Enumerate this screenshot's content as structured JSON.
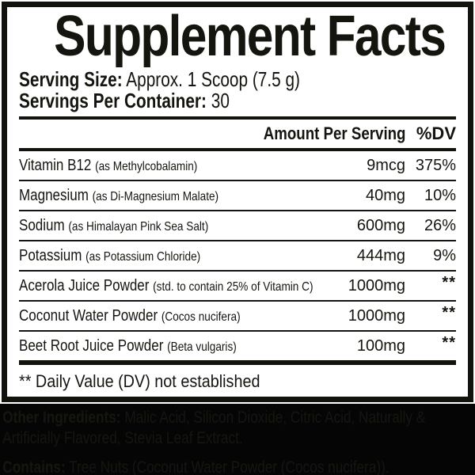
{
  "panel": {
    "title": "Supplement Facts",
    "serving_size_label": "Serving Size:",
    "serving_size_value": "Approx. 1 Scoop (7.5 g)",
    "servings_per_container_label": "Servings Per Container:",
    "servings_per_container_value": "30",
    "footnote": "** Daily Value (DV) not established"
  },
  "table": {
    "amount_header": "Amount Per Serving",
    "dv_header": "%DV",
    "rows": [
      {
        "name": "Vitamin B12",
        "detail": "(as Methylcobalamin)",
        "amount": "9mcg",
        "dv": "375%"
      },
      {
        "name": "Magnesium",
        "detail": "(as Di-Magnesium Malate)",
        "amount": "40mg",
        "dv": "10%"
      },
      {
        "name": "Sodium",
        "detail": "(as Himalayan Pink Sea Salt)",
        "amount": "600mg",
        "dv": "26%"
      },
      {
        "name": "Potassium",
        "detail": "(as Potassium Chloride)",
        "amount": "444mg",
        "dv": "9%"
      },
      {
        "name": "Acerola Juice Powder",
        "detail": "(std. to contain 25% of Vitamin C)",
        "amount": "1000mg",
        "dv": "**"
      },
      {
        "name": "Coconut Water Powder",
        "detail": "(Cocos nucifera)",
        "amount": "1000mg",
        "dv": "**"
      },
      {
        "name": "Beet Root Juice Powder",
        "detail": "(Beta vulgaris)",
        "amount": "100mg",
        "dv": "**"
      }
    ]
  },
  "bottom": {
    "other_ingredients_label": "Other Ingredients:",
    "other_ingredients_text": "Malic Acid, Silicon Dioxide, Citric Acid, Naturally & Artificially Flavored, Stevia Leaf Extract.",
    "contains_label": "Contains:",
    "contains_text": "Tree Nuts (Coconut Water Powder (Cocos nucifera))."
  },
  "colors": {
    "ink": "#15150f",
    "panel_border": "#13130d",
    "band_background": "#050505",
    "band_text": "#161610"
  }
}
